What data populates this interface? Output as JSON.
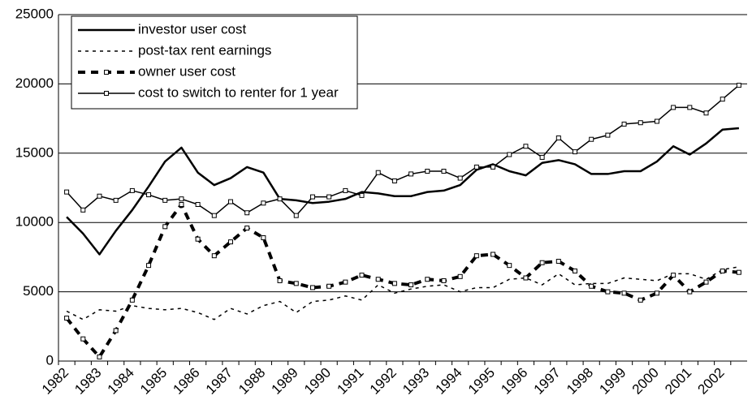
{
  "chart_data": {
    "type": "line",
    "categories": [
      "1982",
      null,
      "1983",
      null,
      "1984",
      null,
      "1985",
      null,
      "1986",
      null,
      "1987",
      null,
      "1988",
      null,
      "1989",
      null,
      "1990",
      null,
      "1991",
      null,
      "1992",
      null,
      "1993",
      null,
      "1994",
      null,
      "1995",
      null,
      "1996",
      null,
      "1997",
      null,
      "1998",
      null,
      "1999",
      null,
      "2000",
      null,
      "2001",
      null,
      "2002",
      null
    ],
    "series": [
      {
        "name": "investor user cost",
        "color": "#000000",
        "width": 2.5,
        "dash": "none",
        "marker": false,
        "values": [
          10400,
          9200,
          7700,
          9400,
          10900,
          12600,
          14400,
          15400,
          13600,
          12700,
          13200,
          14000,
          13600,
          11700,
          11600,
          11400,
          11500,
          11700,
          12200,
          12100,
          11900,
          11900,
          12200,
          12300,
          12700,
          13800,
          14200,
          13700,
          13400,
          14300,
          14500,
          14200,
          13500,
          13500,
          13700,
          13700,
          14400,
          15500,
          14900,
          15700,
          16700,
          16800
        ]
      },
      {
        "name": "post-tax rent earnings",
        "color": "#000000",
        "width": 1.5,
        "dash": "4 5",
        "marker": false,
        "values": [
          3600,
          3000,
          3700,
          3600,
          4000,
          3800,
          3700,
          3800,
          3500,
          3000,
          3800,
          3400,
          4000,
          4300,
          3500,
          4300,
          4400,
          4700,
          4400,
          5500,
          4900,
          5200,
          5400,
          5500,
          5000,
          5300,
          5300,
          5900,
          6000,
          5500,
          6300,
          5500,
          5600,
          5600,
          6000,
          5900,
          5800,
          6300,
          6300,
          5900,
          6600,
          6800
        ]
      },
      {
        "name": "owner user cost",
        "color": "#000000",
        "width": 4,
        "dash": "9 7",
        "marker": true,
        "values": [
          3100,
          1600,
          300,
          2200,
          4400,
          6900,
          9700,
          11300,
          8800,
          7600,
          8600,
          9600,
          8900,
          5800,
          5600,
          5300,
          5400,
          5700,
          6200,
          5900,
          5600,
          5500,
          5900,
          5800,
          6100,
          7600,
          7700,
          6900,
          6000,
          7100,
          7200,
          6500,
          5400,
          5000,
          4900,
          4400,
          4900,
          6200,
          5000,
          5700,
          6500,
          6400
        ]
      },
      {
        "name": "cost to switch to renter for 1 year",
        "color": "#000000",
        "width": 1.5,
        "dash": "none",
        "marker": true,
        "values": [
          12200,
          10900,
          11900,
          11600,
          12300,
          12000,
          11600,
          11700,
          11300,
          10500,
          11500,
          10700,
          11400,
          11700,
          10500,
          11850,
          11850,
          12300,
          11950,
          13600,
          13000,
          13500,
          13700,
          13700,
          13200,
          14000,
          14000,
          14900,
          15500,
          14700,
          16100,
          15100,
          16000,
          16300,
          17100,
          17200,
          17300,
          18300,
          18300,
          17900,
          18900,
          19900
        ]
      }
    ],
    "ylim": [
      0,
      25000
    ],
    "yticks": [
      0,
      5000,
      10000,
      15000,
      20000,
      25000
    ],
    "grid": true,
    "legend": "upper left"
  }
}
